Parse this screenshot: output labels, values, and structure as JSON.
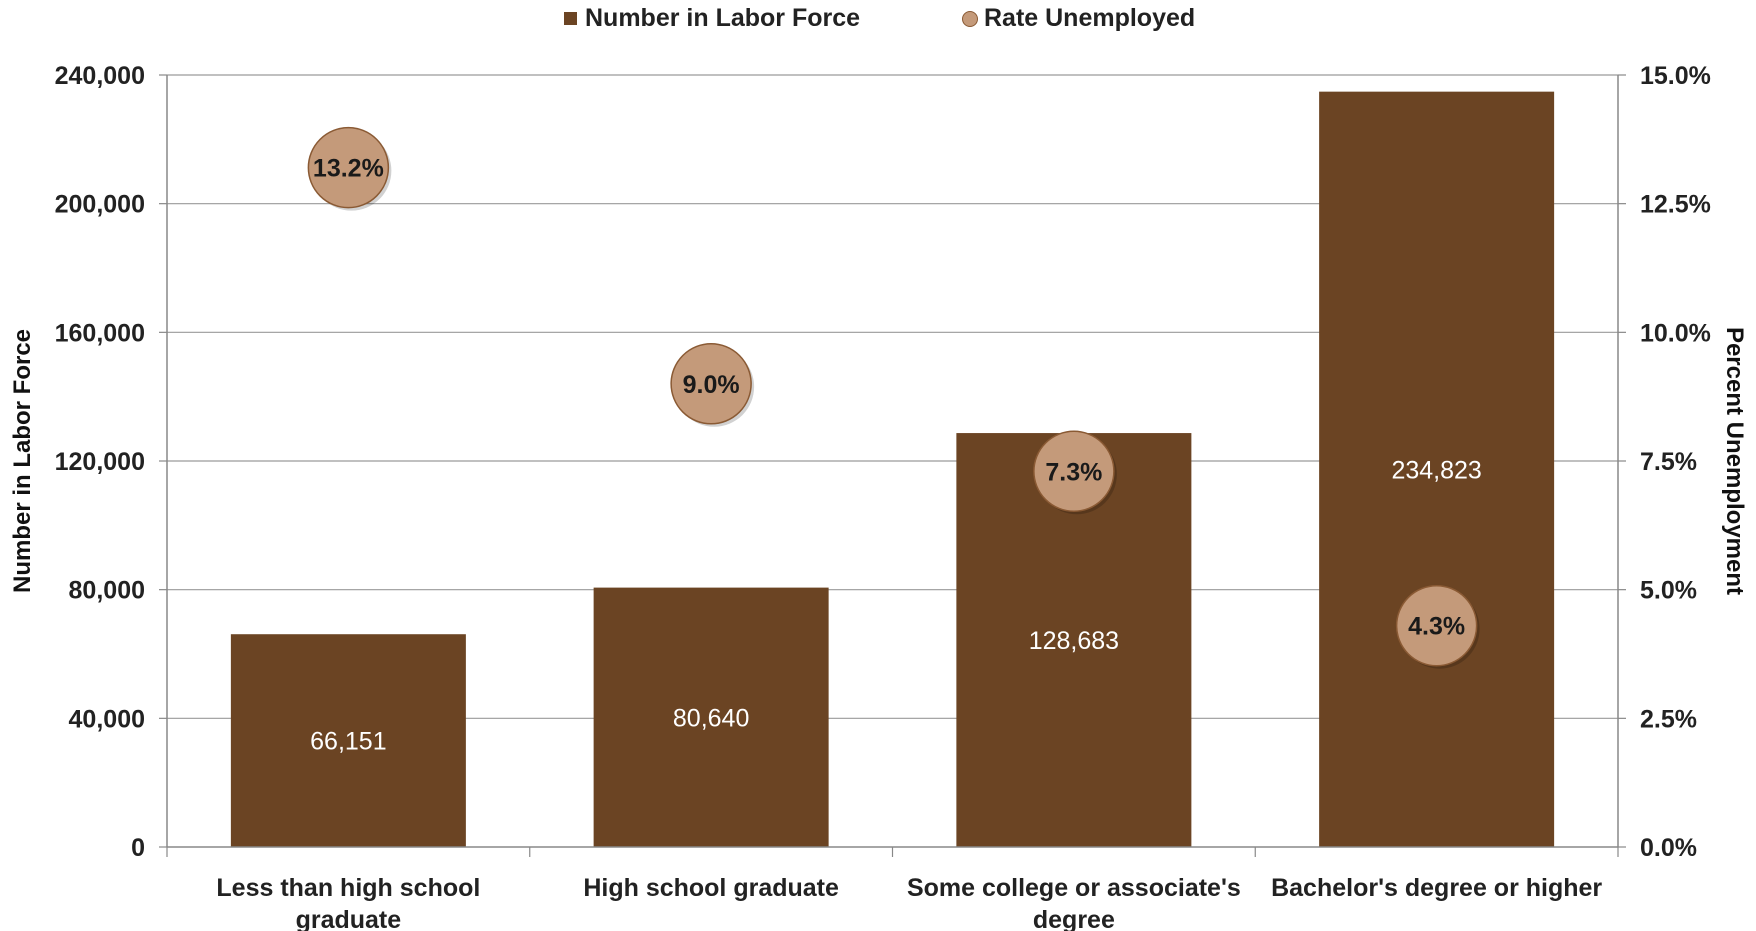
{
  "chart_data": {
    "type": "bar",
    "categories": [
      [
        "Less than high school",
        "graduate"
      ],
      [
        "High school graduate"
      ],
      [
        "Some college or associate's",
        "degree"
      ],
      [
        "Bachelor's degree or higher"
      ]
    ],
    "series": [
      {
        "name": "Number in Labor Force",
        "type": "bar",
        "axis": "left",
        "values": [
          66151,
          80640,
          128683,
          234823
        ],
        "labels": [
          "66,151",
          "80,640",
          "128,683",
          "234,823"
        ],
        "label_position": "middle",
        "color": "#6B4423"
      },
      {
        "name": "Rate Unemployed",
        "type": "scatter",
        "axis": "right",
        "values": [
          13.2,
          9.0,
          7.3,
          4.3
        ],
        "labels": [
          "13.2%",
          "9.0%",
          "7.3%",
          "4.3%"
        ],
        "color": "#C49A7A"
      }
    ],
    "ylabel": "Number in Labor Force",
    "y2label": "Percent Unemployment",
    "ylim": [
      0,
      240000
    ],
    "y2lim": [
      0,
      15
    ],
    "yticks": [
      "0",
      "40,000",
      "80,000",
      "120,000",
      "160,000",
      "200,000",
      "240,000"
    ],
    "y2ticks": [
      "0.0%",
      "2.5%",
      "5.0%",
      "7.5%",
      "10.0%",
      "12.5%",
      "15.0%"
    ],
    "grid": true,
    "legend": "top-center"
  },
  "legend": {
    "items": [
      {
        "label": "Number in Labor Force",
        "marker": "square",
        "color": "#6B4423"
      },
      {
        "label": "Rate Unemployed",
        "marker": "circle",
        "color": "#C49A7A"
      }
    ]
  }
}
